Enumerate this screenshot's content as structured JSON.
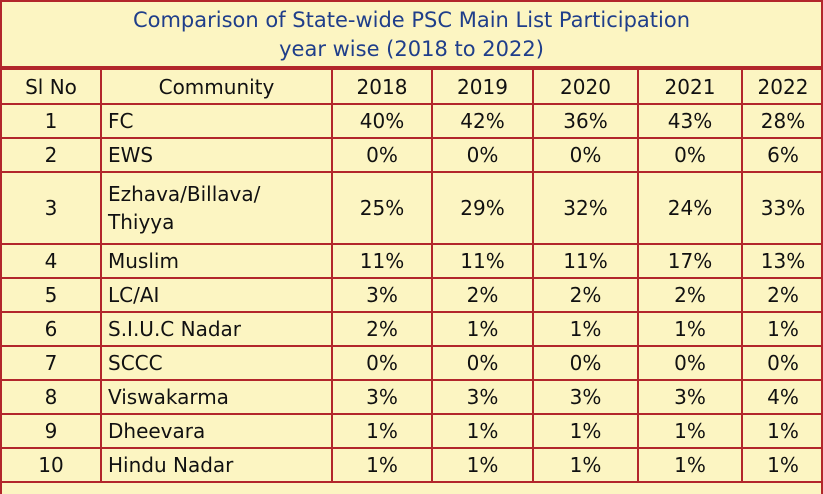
{
  "chart_data": {
    "type": "table",
    "title_line1": "Comparison of State-wide PSC Main List Participation",
    "title_line2": "year wise (2018 to 2022)",
    "columns": [
      "Sl No",
      "Community",
      "2018",
      "2019",
      "2020",
      "2021",
      "2022"
    ],
    "rows": [
      {
        "sl": "1",
        "community": "FC",
        "values": [
          "40%",
          "42%",
          "36%",
          "43%",
          "28%"
        ]
      },
      {
        "sl": "2",
        "community": "EWS",
        "values": [
          "0%",
          "0%",
          "0%",
          "0%",
          "6%"
        ]
      },
      {
        "sl": "3",
        "community": "Ezhava/Billava/ Thiyya",
        "values": [
          "25%",
          "29%",
          "32%",
          "24%",
          "33%"
        ]
      },
      {
        "sl": "4",
        "community": "Muslim",
        "values": [
          "11%",
          "11%",
          "11%",
          "17%",
          "13%"
        ]
      },
      {
        "sl": "5",
        "community": "LC/AI",
        "values": [
          "3%",
          "2%",
          "2%",
          "2%",
          "2%"
        ]
      },
      {
        "sl": "6",
        "community": "S.I.U.C Nadar",
        "values": [
          "2%",
          "1%",
          "1%",
          "1%",
          "1%"
        ]
      },
      {
        "sl": "7",
        "community": "SCCC",
        "values": [
          "0%",
          "0%",
          "0%",
          "0%",
          "0%"
        ]
      },
      {
        "sl": "8",
        "community": "Viswakarma",
        "values": [
          "3%",
          "3%",
          "3%",
          "3%",
          "4%"
        ]
      },
      {
        "sl": "9",
        "community": "Dheevara",
        "values": [
          "1%",
          "1%",
          "1%",
          "1%",
          "1%"
        ]
      },
      {
        "sl": "10",
        "community": "Hindu Nadar",
        "values": [
          "1%",
          "1%",
          "1%",
          "1%",
          "1%"
        ]
      }
    ]
  },
  "colors": {
    "background": "#fcf5c2",
    "border": "#b2262b",
    "title_text": "#1f3e8a",
    "cell_text": "#111111"
  }
}
